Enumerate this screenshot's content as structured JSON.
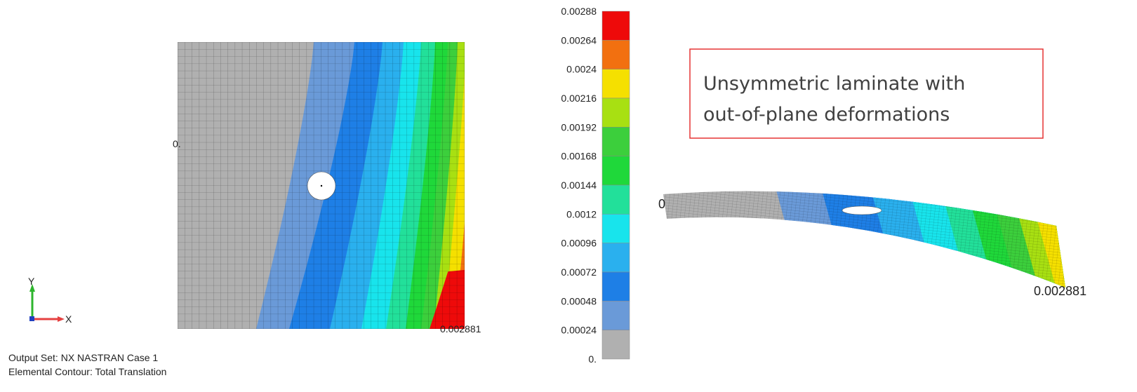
{
  "left_view": {
    "label_min": "0.",
    "label_max": "0.002881",
    "axis_y": "Y",
    "axis_x": "X",
    "info": [
      "Output Set: NX NASTRAN Case 1",
      "Elemental Contour: Total Translation"
    ]
  },
  "legend": {
    "levels": [
      "0.00288",
      "0.00264",
      "0.0024",
      "0.00216",
      "0.00192",
      "0.00168",
      "0.00144",
      "0.0012",
      "0.00096",
      "0.00072",
      "0.00048",
      "0.00024",
      "0."
    ],
    "colors": [
      "#ee0a0a",
      "#f27010",
      "#f5e000",
      "#a8e012",
      "#3ccf3c",
      "#1fd83a",
      "#22e09a",
      "#18e4ec",
      "#2ab0ee",
      "#1e7fe6",
      "#6a9ad8",
      "#b0b0b0"
    ]
  },
  "annotation": {
    "lines": [
      "Unsymmetric laminate with",
      "out-of-plane deformations"
    ],
    "color": "#e53333"
  },
  "right_view": {
    "label_min": "0",
    "label_max": "0.002881"
  }
}
